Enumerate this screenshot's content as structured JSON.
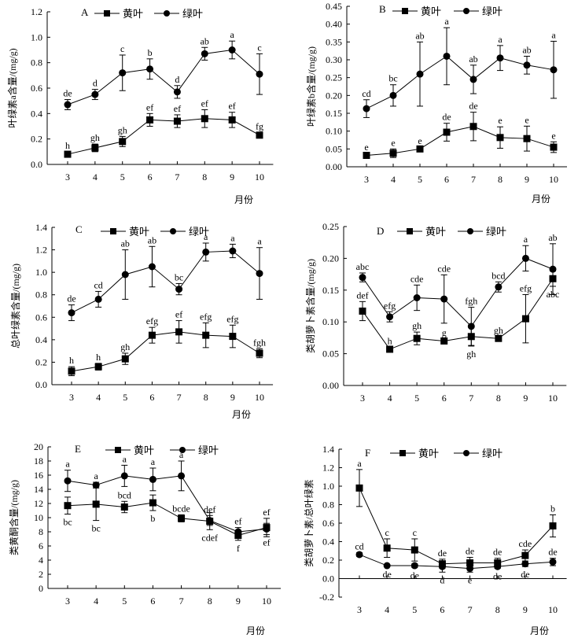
{
  "legend_labels": {
    "yellow": "黄叶",
    "green": "绿叶"
  },
  "chart_data": [
    {
      "panel": "A",
      "type": "line",
      "ylabel": "叶绿素a含量/(mg/g)",
      "xlabel": "月份",
      "categories": [
        "3",
        "4",
        "5",
        "6",
        "7",
        "8",
        "9",
        "10"
      ],
      "ylim": [
        0,
        1.2
      ],
      "yticks": [
        "0.0",
        "0.2",
        "0.4",
        "0.6",
        "0.8",
        "1.0",
        "1.2"
      ],
      "legend": "top",
      "grid": false,
      "series": [
        {
          "name": "黄叶",
          "marker": "square",
          "values": [
            0.08,
            0.13,
            0.18,
            0.35,
            0.34,
            0.36,
            0.35,
            0.23
          ],
          "errors": [
            0.02,
            0.03,
            0.04,
            0.05,
            0.05,
            0.07,
            0.06,
            0.02
          ],
          "labels": [
            "h",
            "gh",
            "gh",
            "ef",
            "ef",
            "ef",
            "ef",
            "fg"
          ]
        },
        {
          "name": "绿叶",
          "marker": "circle",
          "values": [
            0.47,
            0.55,
            0.72,
            0.75,
            0.57,
            0.87,
            0.9,
            0.71
          ],
          "errors": [
            0.04,
            0.04,
            0.14,
            0.08,
            0.05,
            0.05,
            0.07,
            0.16
          ],
          "labels": [
            "de",
            "d",
            "c",
            "b",
            "d",
            "ab",
            "a",
            "c"
          ]
        }
      ]
    },
    {
      "panel": "B",
      "type": "line",
      "ylabel": "叶绿素b含量/(mg/g)",
      "xlabel": "月份",
      "categories": [
        "3",
        "4",
        "5",
        "6",
        "7",
        "8",
        "9",
        "10"
      ],
      "ylim": [
        0,
        0.45
      ],
      "yticks": [
        "0.00",
        "0.05",
        "0.10",
        "0.15",
        "0.20",
        "0.25",
        "0.30",
        "0.35",
        "0.40",
        "0.45"
      ],
      "legend": "top",
      "grid": false,
      "series": [
        {
          "name": "黄叶",
          "marker": "square",
          "values": [
            0.032,
            0.038,
            0.05,
            0.097,
            0.113,
            0.082,
            0.079,
            0.055
          ],
          "errors": [
            0.006,
            0.012,
            0.005,
            0.025,
            0.04,
            0.03,
            0.035,
            0.015
          ],
          "labels": [
            "e",
            "e",
            "e",
            "de",
            "de",
            "e",
            "e",
            "e"
          ]
        },
        {
          "name": "绿叶",
          "marker": "circle",
          "values": [
            0.163,
            0.2,
            0.26,
            0.31,
            0.245,
            0.305,
            0.285,
            0.272
          ],
          "errors": [
            0.025,
            0.03,
            0.09,
            0.08,
            0.04,
            0.035,
            0.025,
            0.08
          ],
          "labels": [
            "cd",
            "bc",
            "ab",
            "a",
            "ab",
            "a",
            "ab",
            "a"
          ]
        }
      ]
    },
    {
      "panel": "C",
      "type": "line",
      "ylabel": "总叶绿素含量/(mg/g)",
      "xlabel": "月份",
      "categories": [
        "3",
        "4",
        "5",
        "6",
        "7",
        "8",
        "9",
        "10"
      ],
      "ylim": [
        0,
        1.4
      ],
      "yticks": [
        "0.0",
        "0.2",
        "0.4",
        "0.6",
        "0.8",
        "1.0",
        "1.2",
        "1.4"
      ],
      "legend": "top",
      "grid": false,
      "series": [
        {
          "name": "黄叶",
          "marker": "square",
          "values": [
            0.12,
            0.16,
            0.23,
            0.44,
            0.47,
            0.44,
            0.43,
            0.28
          ],
          "errors": [
            0.04,
            0.03,
            0.05,
            0.07,
            0.1,
            0.11,
            0.1,
            0.04
          ],
          "labels": [
            "h",
            "h",
            "gh",
            "efg",
            "ef",
            "efg",
            "efg",
            "fgh"
          ]
        },
        {
          "name": "绿叶",
          "marker": "circle",
          "values": [
            0.64,
            0.76,
            0.98,
            1.05,
            0.85,
            1.18,
            1.19,
            0.99
          ],
          "errors": [
            0.07,
            0.07,
            0.22,
            0.18,
            0.05,
            0.08,
            0.06,
            0.23
          ],
          "labels": [
            "de",
            "cd",
            "ab",
            "ab",
            "bc",
            "a",
            "a",
            "a"
          ]
        }
      ]
    },
    {
      "panel": "D",
      "type": "line",
      "ylabel": "类胡萝卜素含量/(mg/g)",
      "xlabel": "",
      "categories": [
        "3",
        "4",
        "5",
        "6",
        "7",
        "8",
        "9",
        "10"
      ],
      "ylim": [
        0,
        0.25
      ],
      "yticks": [
        "0.00",
        "0.05",
        "0.10",
        "0.15",
        "0.20",
        "0.25"
      ],
      "legend": "top",
      "grid": false,
      "series": [
        {
          "name": "黄叶",
          "marker": "square",
          "values": [
            0.117,
            0.057,
            0.074,
            0.07,
            0.077,
            0.074,
            0.105,
            0.168
          ],
          "errors": [
            0.015,
            0.003,
            0.01,
            0.003,
            0.015,
            0.003,
            0.038,
            0.012
          ],
          "labels": [
            "def",
            "h",
            "gh",
            "g",
            "gh",
            "gh",
            "efg",
            "abc"
          ]
        },
        {
          "name": "绿叶",
          "marker": "circle",
          "values": [
            0.17,
            0.108,
            0.138,
            0.136,
            0.093,
            0.155,
            0.2,
            0.183
          ],
          "errors": [
            0.007,
            0.008,
            0.02,
            0.038,
            0.03,
            0.008,
            0.02,
            0.04
          ],
          "labels": [
            "abc",
            "efg",
            "cde",
            "cde",
            "fgh",
            "bcd",
            "a",
            "ab"
          ]
        }
      ]
    },
    {
      "panel": "E",
      "type": "line",
      "ylabel": "类黄酮含量/(mg/g)",
      "xlabel": "月份",
      "categories": [
        "3",
        "4",
        "5",
        "6",
        "7",
        "8",
        "9",
        "10"
      ],
      "ylim": [
        0,
        20
      ],
      "yticks": [
        "0",
        "2",
        "4",
        "6",
        "8",
        "10",
        "12",
        "14",
        "16",
        "18",
        "20"
      ],
      "legend": "top",
      "grid": false,
      "series": [
        {
          "name": "黄叶",
          "marker": "square",
          "values": [
            11.7,
            11.9,
            11.5,
            12.1,
            9.9,
            9.5,
            7.5,
            8.6
          ],
          "errors": [
            1.2,
            2.3,
            0.8,
            1.1,
            0.5,
            1.2,
            0.7,
            1.3
          ],
          "labels": [
            "bc",
            "bc",
            "bcd",
            "b",
            "bcde",
            "cdef",
            "f",
            "ef"
          ]
        },
        {
          "name": "绿叶",
          "marker": "circle",
          "values": [
            15.2,
            14.6,
            15.9,
            15.4,
            15.9,
            9.6,
            8.0,
            8.4
          ],
          "errors": [
            1.5,
            0.4,
            1.5,
            1.6,
            2.1,
            0.7,
            0.6,
            0.8
          ],
          "labels": [
            "a",
            "a",
            "a",
            "a",
            "a",
            "def",
            "ef",
            "ef"
          ]
        }
      ]
    },
    {
      "panel": "F",
      "type": "line",
      "ylabel": "类胡萝卜素/总叶绿素",
      "xlabel": "月份",
      "categories": [
        "3",
        "4",
        "5",
        "6",
        "7",
        "8",
        "9",
        "10"
      ],
      "ylim": [
        -0.2,
        1.4
      ],
      "yticks": [
        "-0.2",
        "0.0",
        "0.2",
        "0.4",
        "0.6",
        "0.8",
        "1.0",
        "1.2",
        "1.4"
      ],
      "legend": "top",
      "grid": false,
      "series": [
        {
          "name": "黄叶",
          "marker": "square",
          "values": [
            0.98,
            0.33,
            0.31,
            0.16,
            0.17,
            0.17,
            0.25,
            0.57
          ],
          "errors": [
            0.2,
            0.1,
            0.12,
            0.05,
            0.06,
            0.05,
            0.06,
            0.12
          ],
          "labels": [
            "a",
            "c",
            "c",
            "de",
            "de",
            "de",
            "cde",
            "b"
          ]
        },
        {
          "name": "绿叶",
          "marker": "circle",
          "values": [
            0.26,
            0.14,
            0.14,
            0.13,
            0.11,
            0.13,
            0.16,
            0.18
          ],
          "errors": [
            0.02,
            0.01,
            0.02,
            0.06,
            0.04,
            0.02,
            0.03,
            0.04
          ],
          "labels": [
            "cd",
            "de",
            "de",
            "d",
            "e",
            "de",
            "de",
            "de"
          ]
        }
      ]
    }
  ]
}
